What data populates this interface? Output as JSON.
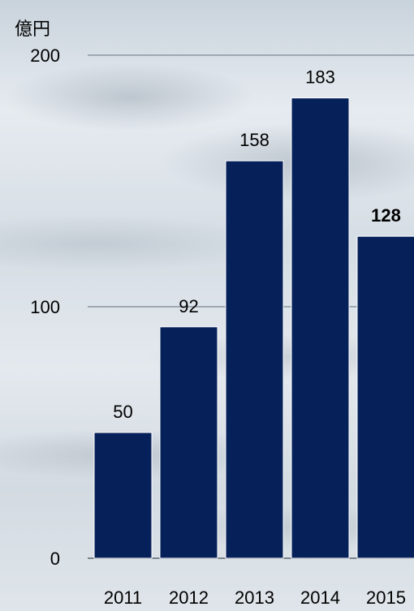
{
  "chart_data": {
    "type": "bar",
    "unit": "億円",
    "categories": [
      "2011",
      "2012",
      "2013",
      "2014",
      "2015"
    ],
    "values": [
      50,
      92,
      158,
      183,
      128
    ],
    "data_labels": [
      "50",
      "92",
      "158",
      "183",
      "128"
    ],
    "highlight_index": 4,
    "yticks": [
      0,
      100,
      200
    ],
    "ylim": [
      0,
      200
    ],
    "grid": true,
    "bar_color": "#06205a",
    "grid_color": "#8a96a3"
  }
}
